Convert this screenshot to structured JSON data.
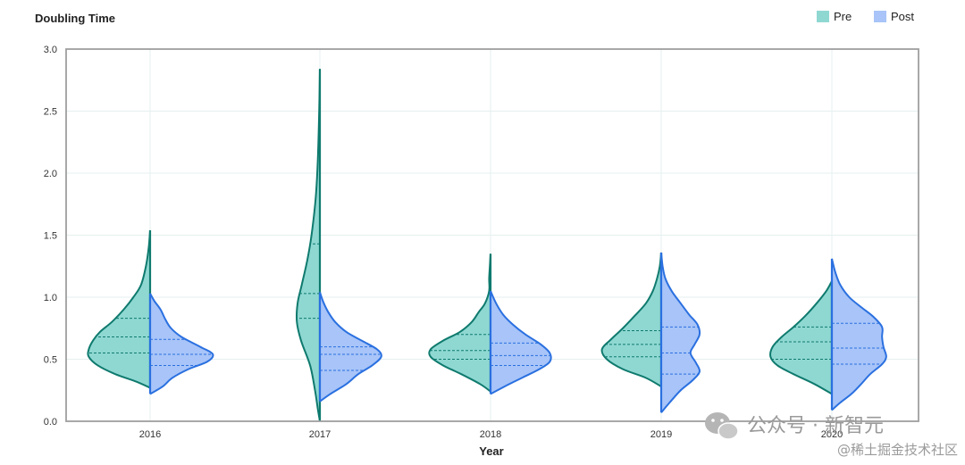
{
  "chart_data": {
    "type": "violin",
    "title": "Doubling Time",
    "xlabel": "Year",
    "ylabel": "",
    "ylim": [
      0,
      3
    ],
    "yticks": [
      0.0,
      0.5,
      1.0,
      1.5,
      2.0,
      2.5,
      3.0
    ],
    "ytick_labels": [
      "0.0",
      "0.5",
      "1.0",
      "1.5",
      "2.0",
      "2.5",
      "3.0"
    ],
    "categories": [
      "2016",
      "2017",
      "2018",
      "2019",
      "2020"
    ],
    "grid": true,
    "legend_position": "top-right",
    "series": [
      {
        "name": "Pre",
        "side": "left",
        "color": "#8fd8d2",
        "stroke": "#0f7a6e",
        "violins": [
          {
            "min": 0.27,
            "max": 1.54,
            "quartiles": [
              0.55,
              0.68,
              0.83
            ],
            "profile": [
              [
                0.27,
                0.0
              ],
              [
                0.32,
                0.2
              ],
              [
                0.38,
                0.5
              ],
              [
                0.45,
                0.75
              ],
              [
                0.52,
                0.88
              ],
              [
                0.58,
                0.88
              ],
              [
                0.65,
                0.82
              ],
              [
                0.72,
                0.72
              ],
              [
                0.8,
                0.55
              ],
              [
                0.9,
                0.38
              ],
              [
                1.0,
                0.24
              ],
              [
                1.1,
                0.13
              ],
              [
                1.25,
                0.06
              ],
              [
                1.4,
                0.02
              ],
              [
                1.54,
                0.0
              ]
            ]
          },
          {
            "min": 0.0,
            "max": 2.84,
            "quartiles": [
              0.83,
              1.03,
              1.43
            ],
            "profile": [
              [
                0.0,
                0.0
              ],
              [
                0.1,
                0.03
              ],
              [
                0.25,
                0.07
              ],
              [
                0.45,
                0.14
              ],
              [
                0.65,
                0.27
              ],
              [
                0.8,
                0.33
              ],
              [
                0.95,
                0.32
              ],
              [
                1.1,
                0.26
              ],
              [
                1.3,
                0.18
              ],
              [
                1.5,
                0.12
              ],
              [
                1.8,
                0.06
              ],
              [
                2.1,
                0.03
              ],
              [
                2.5,
                0.01
              ],
              [
                2.84,
                0.0
              ]
            ]
          },
          {
            "min": 0.24,
            "max": 1.35,
            "quartiles": [
              0.5,
              0.57,
              0.7
            ],
            "profile": [
              [
                0.24,
                0.0
              ],
              [
                0.3,
                0.15
              ],
              [
                0.38,
                0.42
              ],
              [
                0.45,
                0.68
              ],
              [
                0.52,
                0.86
              ],
              [
                0.58,
                0.86
              ],
              [
                0.65,
                0.68
              ],
              [
                0.72,
                0.44
              ],
              [
                0.8,
                0.27
              ],
              [
                0.88,
                0.17
              ],
              [
                0.95,
                0.08
              ],
              [
                1.05,
                0.02
              ],
              [
                1.15,
                0.02
              ],
              [
                1.25,
                0.01
              ],
              [
                1.35,
                0.0
              ]
            ]
          },
          {
            "min": 0.28,
            "max": 1.36,
            "quartiles": [
              0.52,
              0.62,
              0.73
            ],
            "profile": [
              [
                0.28,
                0.0
              ],
              [
                0.35,
                0.22
              ],
              [
                0.42,
                0.55
              ],
              [
                0.5,
                0.78
              ],
              [
                0.58,
                0.85
              ],
              [
                0.66,
                0.72
              ],
              [
                0.75,
                0.55
              ],
              [
                0.85,
                0.38
              ],
              [
                0.95,
                0.22
              ],
              [
                1.05,
                0.12
              ],
              [
                1.15,
                0.06
              ],
              [
                1.25,
                0.02
              ],
              [
                1.36,
                0.0
              ]
            ]
          },
          {
            "min": 0.22,
            "max": 1.13,
            "quartiles": [
              0.5,
              0.64,
              0.76
            ],
            "profile": [
              [
                0.22,
                0.0
              ],
              [
                0.3,
                0.25
              ],
              [
                0.38,
                0.55
              ],
              [
                0.45,
                0.78
              ],
              [
                0.52,
                0.88
              ],
              [
                0.6,
                0.85
              ],
              [
                0.68,
                0.72
              ],
              [
                0.76,
                0.55
              ],
              [
                0.85,
                0.38
              ],
              [
                0.95,
                0.22
              ],
              [
                1.05,
                0.08
              ],
              [
                1.13,
                0.0
              ]
            ]
          }
        ]
      },
      {
        "name": "Post",
        "side": "right",
        "color": "#a8c4f8",
        "stroke": "#2a70e0",
        "violins": [
          {
            "min": 0.22,
            "max": 1.03,
            "quartiles": [
              0.45,
              0.54,
              0.66
            ],
            "profile": [
              [
                0.22,
                0.0
              ],
              [
                0.28,
                0.18
              ],
              [
                0.35,
                0.32
              ],
              [
                0.42,
                0.55
              ],
              [
                0.48,
                0.82
              ],
              [
                0.54,
                0.9
              ],
              [
                0.6,
                0.72
              ],
              [
                0.68,
                0.45
              ],
              [
                0.75,
                0.3
              ],
              [
                0.82,
                0.22
              ],
              [
                0.9,
                0.15
              ],
              [
                0.97,
                0.06
              ],
              [
                1.03,
                0.0
              ]
            ]
          },
          {
            "min": 0.16,
            "max": 1.04,
            "quartiles": [
              0.41,
              0.54,
              0.6
            ],
            "profile": [
              [
                0.16,
                0.0
              ],
              [
                0.22,
                0.15
              ],
              [
                0.3,
                0.38
              ],
              [
                0.38,
                0.55
              ],
              [
                0.45,
                0.75
              ],
              [
                0.52,
                0.88
              ],
              [
                0.58,
                0.82
              ],
              [
                0.65,
                0.6
              ],
              [
                0.72,
                0.38
              ],
              [
                0.8,
                0.22
              ],
              [
                0.88,
                0.12
              ],
              [
                0.96,
                0.05
              ],
              [
                1.04,
                0.0
              ]
            ]
          },
          {
            "min": 0.22,
            "max": 1.05,
            "quartiles": [
              0.45,
              0.53,
              0.63
            ],
            "profile": [
              [
                0.22,
                0.0
              ],
              [
                0.28,
                0.2
              ],
              [
                0.35,
                0.45
              ],
              [
                0.42,
                0.7
              ],
              [
                0.48,
                0.85
              ],
              [
                0.55,
                0.85
              ],
              [
                0.62,
                0.72
              ],
              [
                0.7,
                0.5
              ],
              [
                0.78,
                0.32
              ],
              [
                0.86,
                0.18
              ],
              [
                0.95,
                0.08
              ],
              [
                1.05,
                0.0
              ]
            ]
          },
          {
            "min": 0.07,
            "max": 1.36,
            "quartiles": [
              0.38,
              0.55,
              0.76
            ],
            "profile": [
              [
                0.07,
                0.0
              ],
              [
                0.15,
                0.12
              ],
              [
                0.25,
                0.28
              ],
              [
                0.33,
                0.45
              ],
              [
                0.4,
                0.55
              ],
              [
                0.47,
                0.5
              ],
              [
                0.55,
                0.42
              ],
              [
                0.62,
                0.48
              ],
              [
                0.7,
                0.55
              ],
              [
                0.78,
                0.52
              ],
              [
                0.86,
                0.4
              ],
              [
                0.95,
                0.28
              ],
              [
                1.05,
                0.15
              ],
              [
                1.15,
                0.06
              ],
              [
                1.25,
                0.02
              ],
              [
                1.36,
                0.0
              ]
            ]
          },
          {
            "min": 0.09,
            "max": 1.31,
            "quartiles": [
              0.46,
              0.59,
              0.79
            ],
            "profile": [
              [
                0.09,
                0.0
              ],
              [
                0.15,
                0.12
              ],
              [
                0.22,
                0.28
              ],
              [
                0.3,
                0.42
              ],
              [
                0.38,
                0.55
              ],
              [
                0.46,
                0.72
              ],
              [
                0.52,
                0.78
              ],
              [
                0.6,
                0.74
              ],
              [
                0.68,
                0.72
              ],
              [
                0.76,
                0.72
              ],
              [
                0.84,
                0.6
              ],
              [
                0.92,
                0.42
              ],
              [
                1.0,
                0.25
              ],
              [
                1.1,
                0.12
              ],
              [
                1.2,
                0.05
              ],
              [
                1.31,
                0.0
              ]
            ]
          }
        ]
      }
    ]
  },
  "watermark": {
    "account_text": "公众号 · 新智元",
    "site_text": "@稀土掘金技术社区"
  }
}
